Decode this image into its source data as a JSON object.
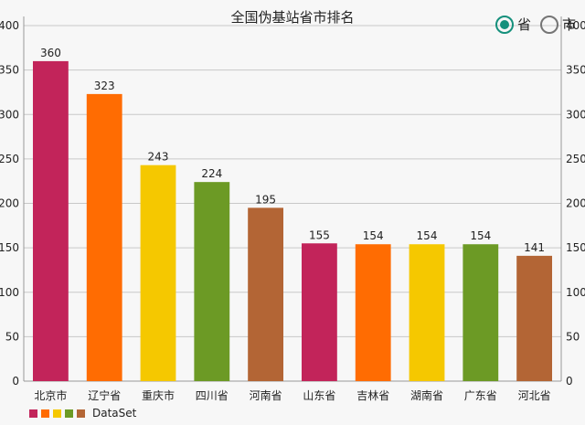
{
  "chart_data": {
    "type": "bar",
    "title": "全国伪基站省市排名",
    "categories": [
      "北京市",
      "辽宁省",
      "重庆市",
      "四川省",
      "河南省",
      "山东省",
      "吉林省",
      "湖南省",
      "广东省",
      "河北省"
    ],
    "values": [
      360,
      323,
      243,
      224,
      195,
      155,
      154,
      154,
      154,
      141
    ],
    "colors": [
      "#c2245a",
      "#ff6c02",
      "#f5c800",
      "#6c9a25",
      "#b36535",
      "#c2245a",
      "#ff6c02",
      "#f5c800",
      "#6c9a25",
      "#b36535"
    ],
    "ylim": [
      0,
      400
    ],
    "yticks": [
      0,
      50,
      100,
      150,
      200,
      250,
      300,
      350,
      400
    ],
    "grid": true,
    "legend": {
      "label": "DataSet",
      "colors": [
        "#c2245a",
        "#ff6c02",
        "#f5c800",
        "#6c9a25",
        "#b36535"
      ],
      "position": "bottom-left"
    }
  },
  "toggle": {
    "options": [
      "省",
      "市"
    ],
    "selected": "省",
    "accent": "#15907c"
  }
}
